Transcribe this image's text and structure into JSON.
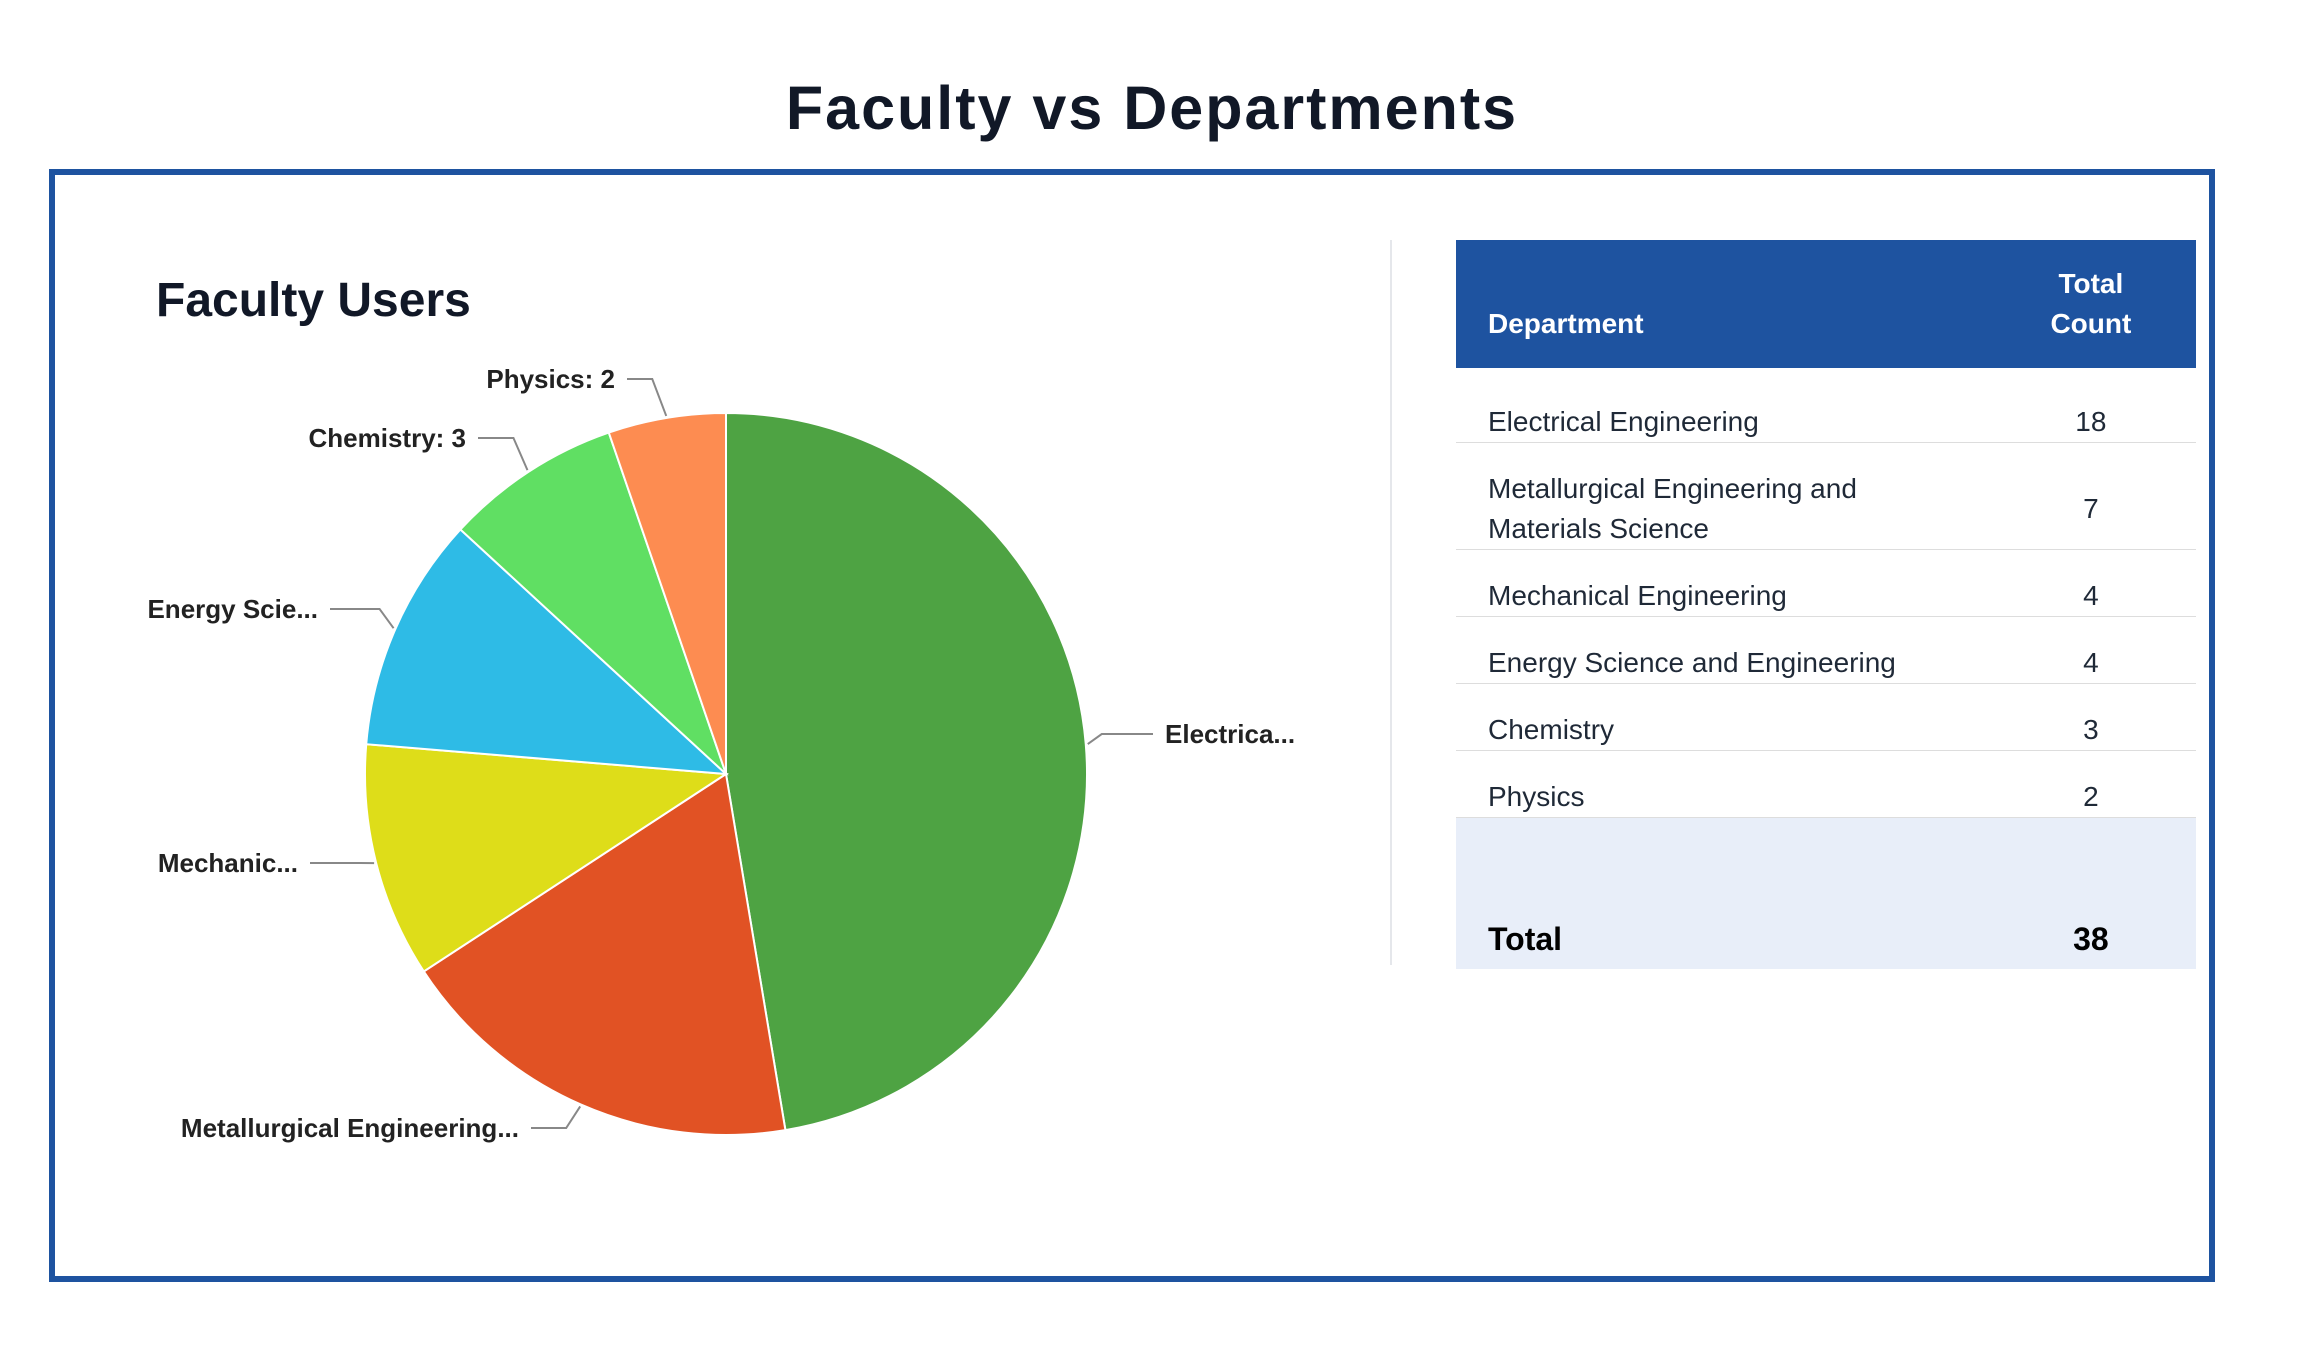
{
  "page": {
    "title": "Faculty vs Departments"
  },
  "colors": {
    "border": "#1e53a0",
    "header_bg": "#1e53a0",
    "total_bg": "#e8eef9"
  },
  "chart_data": {
    "type": "pie",
    "title": "Faculty Users",
    "slices": [
      {
        "label": "Electrica...",
        "value": 18,
        "color": "#4ea343"
      },
      {
        "label": "Metallurgical Engineering...",
        "value": 7,
        "color": "#e15224"
      },
      {
        "label": "Mechanic...",
        "value": 4,
        "color": "#dedd19"
      },
      {
        "label": "Energy Scie...",
        "value": 4,
        "color": "#2ebbe6"
      },
      {
        "label": "Chemistry: 3",
        "value": 3,
        "color": "#60df63"
      },
      {
        "label": "Physics: 2",
        "value": 2,
        "color": "#fd8c51"
      }
    ]
  },
  "table": {
    "headers": {
      "department": "Department",
      "count_line1": "Total",
      "count_line2": "Count"
    },
    "rows": [
      {
        "department": "Electrical Engineering",
        "count": "18"
      },
      {
        "department": "Metallurgical Engineering and Materials Science",
        "count": "7"
      },
      {
        "department": "Mechanical Engineering",
        "count": "4"
      },
      {
        "department": "Energy Science and Engineering",
        "count": "4"
      },
      {
        "department": "Chemistry",
        "count": "3"
      },
      {
        "department": "Physics",
        "count": "2"
      }
    ],
    "total": {
      "label": "Total",
      "value": "38"
    }
  }
}
